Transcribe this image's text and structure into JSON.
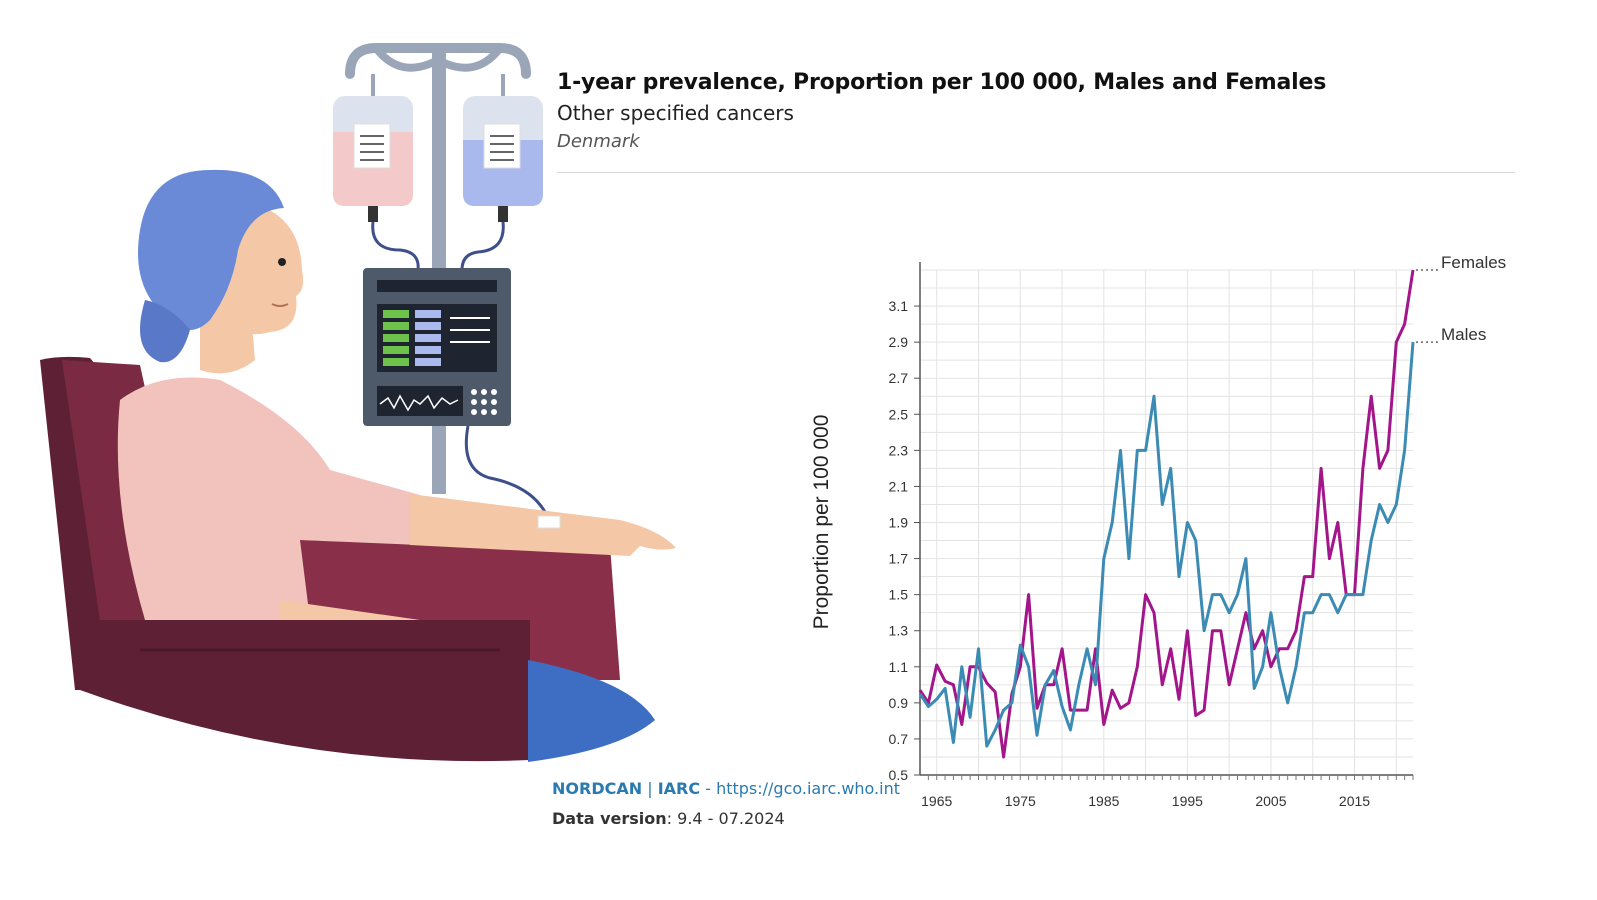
{
  "chart_data": {
    "type": "line",
    "title": "1-year prevalence, Proportion per 100 000, Males and Females",
    "subtitle": "Other specified cancers",
    "region": "Denmark",
    "ylabel": "Proportion per 100 000",
    "xlabel": "",
    "ylim": [
      0.5,
      3.3
    ],
    "xlim": [
      1963,
      2022
    ],
    "yticks": [
      0.5,
      0.7,
      0.9,
      1.1,
      1.3,
      1.5,
      1.7,
      1.9,
      2.1,
      2.3,
      2.5,
      2.7,
      2.9,
      3.1
    ],
    "xticks": [
      1965,
      1975,
      1985,
      1995,
      2005,
      2015
    ],
    "grid": true,
    "legend": "end-of-line labels",
    "series": [
      {
        "name": "Females",
        "color": "#a3158a",
        "x": [
          1963,
          1964,
          1965,
          1966,
          1967,
          1968,
          1969,
          1970,
          1971,
          1972,
          1973,
          1974,
          1975,
          1976,
          1977,
          1978,
          1979,
          1980,
          1981,
          1982,
          1983,
          1984,
          1985,
          1986,
          1987,
          1988,
          1989,
          1990,
          1991,
          1992,
          1993,
          1994,
          1995,
          1996,
          1997,
          1998,
          1999,
          2000,
          2001,
          2002,
          2003,
          2004,
          2005,
          2006,
          2007,
          2008,
          2009,
          2010,
          2011,
          2012,
          2013,
          2014,
          2015,
          2016,
          2017,
          2018,
          2019,
          2020,
          2021,
          2022
        ],
        "values": [
          0.97,
          0.9,
          1.11,
          1.02,
          1.0,
          0.78,
          1.1,
          1.1,
          1.01,
          0.96,
          0.6,
          0.95,
          1.1,
          1.5,
          0.87,
          1.0,
          1.0,
          1.2,
          0.86,
          0.86,
          0.86,
          1.2,
          0.78,
          0.97,
          0.87,
          0.9,
          1.1,
          1.5,
          1.4,
          1.0,
          1.2,
          0.92,
          1.3,
          0.83,
          0.86,
          1.3,
          1.3,
          1.0,
          1.2,
          1.4,
          1.2,
          1.3,
          1.1,
          1.2,
          1.2,
          1.3,
          1.6,
          1.6,
          2.2,
          1.7,
          1.9,
          1.5,
          1.5,
          2.2,
          2.6,
          2.2,
          2.3,
          2.9,
          3.0,
          3.3
        ]
      },
      {
        "name": "Males",
        "color": "#3b8bb4",
        "x": [
          1963,
          1964,
          1965,
          1966,
          1967,
          1968,
          1969,
          1970,
          1971,
          1972,
          1973,
          1974,
          1975,
          1976,
          1977,
          1978,
          1979,
          1980,
          1981,
          1982,
          1983,
          1984,
          1985,
          1986,
          1987,
          1988,
          1989,
          1990,
          1991,
          1992,
          1993,
          1994,
          1995,
          1996,
          1997,
          1998,
          1999,
          2000,
          2001,
          2002,
          2003,
          2004,
          2005,
          2006,
          2007,
          2008,
          2009,
          2010,
          2011,
          2012,
          2013,
          2014,
          2015,
          2016,
          2017,
          2018,
          2019,
          2020,
          2021,
          2022
        ],
        "values": [
          0.95,
          0.88,
          0.92,
          0.98,
          0.68,
          1.1,
          0.82,
          1.2,
          0.66,
          0.75,
          0.86,
          0.9,
          1.22,
          1.1,
          0.72,
          1.0,
          1.08,
          0.88,
          0.75,
          1.0,
          1.2,
          1.0,
          1.7,
          1.9,
          2.3,
          1.7,
          2.3,
          2.3,
          2.6,
          2.0,
          2.2,
          1.6,
          1.9,
          1.8,
          1.3,
          1.5,
          1.5,
          1.4,
          1.5,
          1.7,
          0.98,
          1.1,
          1.4,
          1.1,
          0.9,
          1.1,
          1.4,
          1.4,
          1.5,
          1.5,
          1.4,
          1.5,
          1.5,
          1.5,
          1.8,
          2.0,
          1.9,
          2.0,
          2.3,
          2.9
        ]
      }
    ]
  },
  "source": {
    "org1": "NORDCAN",
    "sep": "|",
    "org2": "IARC",
    "dash": "-",
    "url": "https://gco.iarc.who.int",
    "version_label": "Data version",
    "version_value": ": 9.4 - 07.2024"
  },
  "illustration": {
    "description_icon": "patient-chemotherapy-infusion",
    "colors": {
      "headscarf": "#6a8ad8",
      "skin": "#f4c8a6",
      "shirt": "#f2c2bd",
      "chair": "#7a2a42",
      "chair_dark": "#5e2034",
      "pants": "#3e6ec4",
      "iv_pole": "#9aa6b8",
      "monitor": "#4e5a6a",
      "bag_left": "#f3c9c9",
      "bag_right": "#a9b9ee"
    }
  }
}
